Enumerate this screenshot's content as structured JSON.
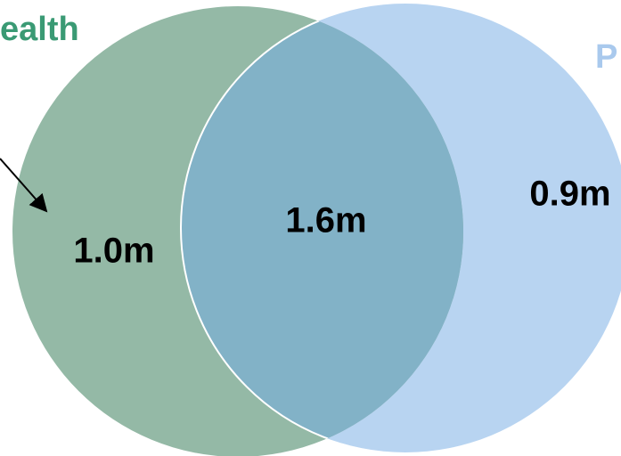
{
  "sets": [
    {
      "label": "ealth"
    },
    {
      "label": "P"
    }
  ],
  "regions": [
    {
      "label": "1.0m"
    },
    {
      "label": "1.6m"
    },
    {
      "label": "0.9m"
    }
  ]
}
